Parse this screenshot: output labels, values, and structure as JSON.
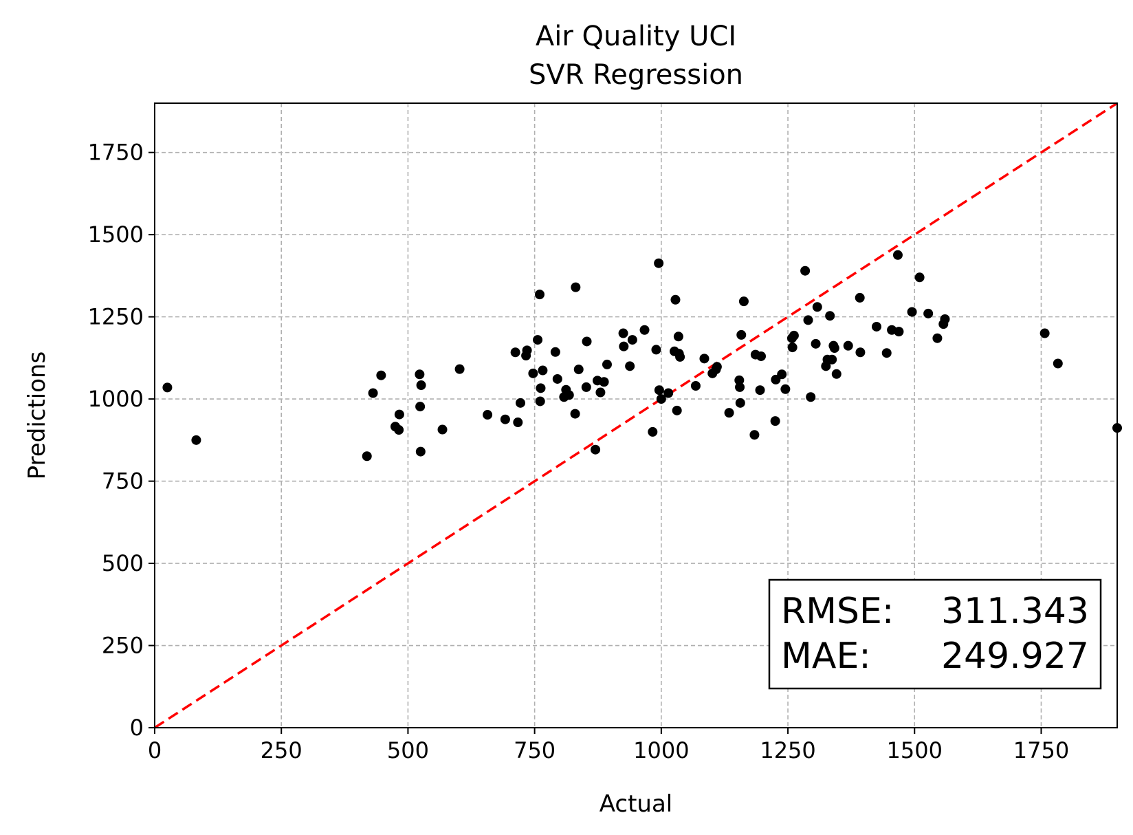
{
  "chart_data": {
    "type": "scatter",
    "title": "Air Quality UCI",
    "subtitle": "SVR Regression",
    "xlabel": "Actual",
    "ylabel": "Predictions",
    "xlim": [
      0,
      1900
    ],
    "ylim": [
      0,
      1900
    ],
    "xticks": [
      0,
      250,
      500,
      750,
      1000,
      1250,
      1500,
      1750
    ],
    "yticks": [
      0,
      250,
      500,
      750,
      1000,
      1250,
      1500,
      1750
    ],
    "grid": true,
    "reference_line": {
      "style": "dashed",
      "color": "#ff0000",
      "from": [
        0,
        0
      ],
      "to": [
        1900,
        1900
      ]
    },
    "metrics": {
      "rmse_label": "RMSE:",
      "rmse_value": "311.343",
      "mae_label": "MAE:",
      "mae_value": "249.927"
    },
    "points": [
      [
        25,
        1035
      ],
      [
        82,
        875
      ],
      [
        419,
        826
      ],
      [
        431,
        1018
      ],
      [
        447,
        1072
      ],
      [
        475,
        916
      ],
      [
        482,
        906
      ],
      [
        483,
        953
      ],
      [
        523,
        1075
      ],
      [
        524,
        977
      ],
      [
        525,
        840
      ],
      [
        526,
        1042
      ],
      [
        568,
        907
      ],
      [
        602,
        1091
      ],
      [
        657,
        952
      ],
      [
        692,
        938
      ],
      [
        712,
        1142
      ],
      [
        717,
        929
      ],
      [
        722,
        988
      ],
      [
        733,
        1132
      ],
      [
        735,
        1148
      ],
      [
        747,
        1078
      ],
      [
        756,
        1180
      ],
      [
        760,
        1318
      ],
      [
        761,
        993
      ],
      [
        762,
        1033
      ],
      [
        766,
        1087
      ],
      [
        791,
        1143
      ],
      [
        795,
        1061
      ],
      [
        808,
        1006
      ],
      [
        812,
        1028
      ],
      [
        818,
        1012
      ],
      [
        830,
        955
      ],
      [
        831,
        1340
      ],
      [
        837,
        1090
      ],
      [
        852,
        1036
      ],
      [
        853,
        1175
      ],
      [
        870,
        846
      ],
      [
        874,
        1056
      ],
      [
        880,
        1020
      ],
      [
        887,
        1052
      ],
      [
        893,
        1105
      ],
      [
        925,
        1200
      ],
      [
        926,
        1160
      ],
      [
        938,
        1100
      ],
      [
        943,
        1180
      ],
      [
        967,
        1210
      ],
      [
        983,
        900
      ],
      [
        990,
        1150
      ],
      [
        995,
        1413
      ],
      [
        996,
        1027
      ],
      [
        1000,
        1000
      ],
      [
        1014,
        1018
      ],
      [
        1026,
        1145
      ],
      [
        1028,
        1302
      ],
      [
        1031,
        965
      ],
      [
        1034,
        1190
      ],
      [
        1035,
        1138
      ],
      [
        1037,
        1128
      ],
      [
        1068,
        1040
      ],
      [
        1085,
        1123
      ],
      [
        1101,
        1078
      ],
      [
        1108,
        1090
      ],
      [
        1110,
        1098
      ],
      [
        1134,
        958
      ],
      [
        1154,
        1057
      ],
      [
        1155,
        1036
      ],
      [
        1156,
        988
      ],
      [
        1158,
        1195
      ],
      [
        1163,
        1297
      ],
      [
        1184,
        891
      ],
      [
        1186,
        1135
      ],
      [
        1195,
        1027
      ],
      [
        1197,
        1130
      ],
      [
        1225,
        933
      ],
      [
        1226,
        1059
      ],
      [
        1238,
        1075
      ],
      [
        1245,
        1030
      ],
      [
        1258,
        1185
      ],
      [
        1259,
        1157
      ],
      [
        1262,
        1193
      ],
      [
        1284,
        1390
      ],
      [
        1290,
        1240
      ],
      [
        1295,
        1006
      ],
      [
        1305,
        1168
      ],
      [
        1308,
        1280
      ],
      [
        1325,
        1100
      ],
      [
        1328,
        1120
      ],
      [
        1333,
        1253
      ],
      [
        1337,
        1120
      ],
      [
        1340,
        1162
      ],
      [
        1342,
        1155
      ],
      [
        1346,
        1076
      ],
      [
        1369,
        1162
      ],
      [
        1392,
        1308
      ],
      [
        1393,
        1142
      ],
      [
        1425,
        1220
      ],
      [
        1445,
        1140
      ],
      [
        1455,
        1210
      ],
      [
        1467,
        1438
      ],
      [
        1469,
        1205
      ],
      [
        1495,
        1265
      ],
      [
        1510,
        1370
      ],
      [
        1527,
        1260
      ],
      [
        1545,
        1185
      ],
      [
        1557,
        1228
      ],
      [
        1560,
        1243
      ],
      [
        1757,
        1200
      ],
      [
        1783,
        1108
      ],
      [
        1900,
        912
      ]
    ]
  }
}
